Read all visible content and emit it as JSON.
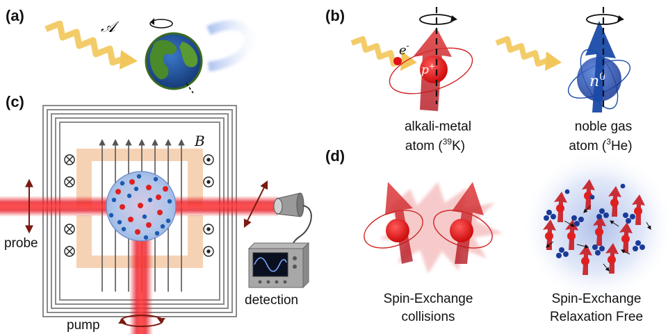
{
  "panels": {
    "a": {
      "label": "(a)",
      "field_symbol": "𝒜"
    },
    "b": {
      "label": "(b)",
      "electron": "e",
      "electron_sup": "-",
      "proton": "p",
      "proton_sup": "+",
      "neutron": "n",
      "neutron_sup": "0",
      "alkali_line1": "alkali-metal",
      "alkali_line2_prefix": "atom (",
      "alkali_mass": "39",
      "alkali_symbol": "K)",
      "noble_line1": "noble gas",
      "noble_line2_prefix": "atom (",
      "noble_mass": "3",
      "noble_symbol": "He)"
    },
    "c": {
      "label": "(c)",
      "field_label": "B",
      "probe": "probe",
      "pump": "pump",
      "detection": "detection"
    },
    "d": {
      "label": "(d)",
      "left_line1": "Spin-Exchange",
      "left_line2": "collisions",
      "right_line1": "Spin-Exchange",
      "right_line2": "Relaxation Free"
    }
  },
  "colors": {
    "laser_red": "#e8202a",
    "wave_yellow": "#f2c65a",
    "earth_blue": "#2a5aa0",
    "earth_green": "#4a8a2a",
    "spin_red": "#c0181e",
    "noble_blue": "#1a4aa8",
    "coil_peach": "#f6d2b4",
    "cell_blue": "#a9c4ec"
  }
}
